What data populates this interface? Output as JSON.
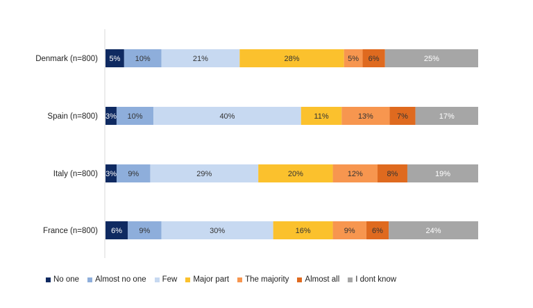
{
  "chart_data": {
    "type": "bar",
    "orientation": "horizontal",
    "stacked": true,
    "percent_stacked": true,
    "categories": [
      "Denmark (n=800)",
      "Spain (n=800)",
      "Italy (n=800)",
      "France (n=800)"
    ],
    "series": [
      {
        "name": "No one",
        "color": "#0f2a61",
        "label_color": "#ffffff",
        "values": [
          5,
          3,
          3,
          6
        ],
        "labels": [
          "5%",
          "3%",
          "3%",
          "6%"
        ]
      },
      {
        "name": "Almost no one",
        "color": "#8eaedb",
        "label_color": "#333333",
        "values": [
          10,
          10,
          9,
          9
        ],
        "labels": [
          "10%",
          "10%",
          "9%",
          "9%"
        ]
      },
      {
        "name": "Few",
        "color": "#c7d9f1",
        "label_color": "#333333",
        "values": [
          21,
          40,
          29,
          30
        ],
        "labels": [
          "21%",
          "40%",
          "29%",
          "30%"
        ]
      },
      {
        "name": "Major part",
        "color": "#fbc12d",
        "label_color": "#333333",
        "values": [
          28,
          11,
          20,
          16
        ],
        "labels": [
          "28%",
          "11%",
          "20%",
          "16%"
        ]
      },
      {
        "name": "The majority",
        "color": "#f7964f",
        "label_color": "#333333",
        "values": [
          5,
          13,
          12,
          9
        ],
        "labels": [
          "5%",
          "13%",
          "12%",
          "9%"
        ]
      },
      {
        "name": "Almost all",
        "color": "#df6a1f",
        "label_color": "#333333",
        "values": [
          6,
          7,
          8,
          6
        ],
        "labels": [
          "6%",
          "7%",
          "8%",
          "6%"
        ]
      },
      {
        "name": "I dont know",
        "color": "#a6a6a6",
        "label_color": "#ffffff",
        "values": [
          25,
          17,
          19,
          24
        ],
        "labels": [
          "25%",
          "17%",
          "19%",
          "24%"
        ]
      }
    ],
    "xlim": [
      0,
      100
    ],
    "title": "",
    "xlabel": "",
    "ylabel": "",
    "grid": false,
    "legend_position": "bottom"
  }
}
